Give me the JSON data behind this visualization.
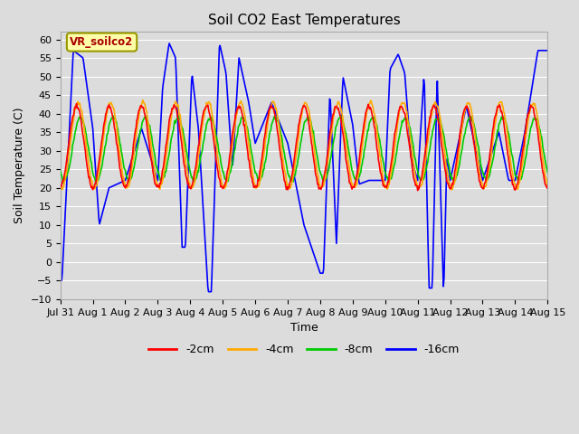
{
  "title": "Soil CO2 East Temperatures",
  "xlabel": "Time",
  "ylabel": "Soil Temperature (C)",
  "ylim": [
    -10,
    62
  ],
  "yticks": [
    -10,
    -5,
    0,
    5,
    10,
    15,
    20,
    25,
    30,
    35,
    40,
    45,
    50,
    55,
    60
  ],
  "bg_color": "#dcdcdc",
  "grid_color": "#ffffff",
  "legend_label": "VR_soilco2",
  "series_labels": [
    "-2cm",
    "-4cm",
    "-8cm",
    "-16cm"
  ],
  "series_colors": [
    "#ff0000",
    "#ffaa00",
    "#00cc00",
    "#0000ff"
  ],
  "x_tick_labels": [
    "Jul 31",
    "Aug 1",
    "Aug 2",
    "Aug 3",
    "Aug 4",
    "Aug 5",
    "Aug 6",
    "Aug 7",
    "Aug 8",
    "Aug 9",
    "Aug 10",
    "Aug 11",
    "Aug 12",
    "Aug 13",
    "Aug 14",
    "Aug 15"
  ],
  "line_width": 1.2
}
